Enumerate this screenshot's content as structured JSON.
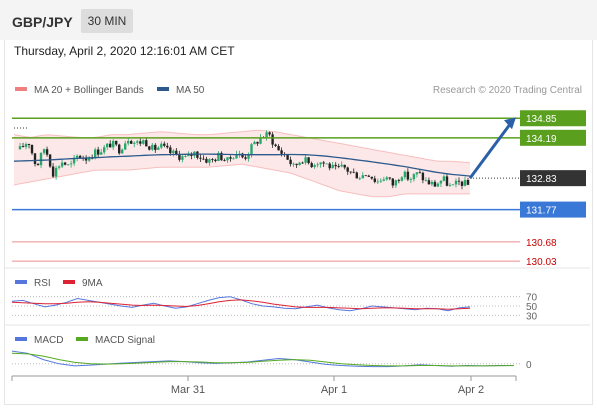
{
  "header": {
    "symbol": "GBP/JPY",
    "timeframe": "30 MIN"
  },
  "timestamp": "Thursday, April 2, 2020 12:16:01 AM CET",
  "legend": {
    "ma20": "MA 20 + Bollinger Bands",
    "ma50": "MA 50",
    "credit": "Research © 2020 Trading Central",
    "rsi": "RSI",
    "ma9": "9MA",
    "macd": "MACD",
    "macd_signal": "MACD Signal"
  },
  "colors": {
    "bollinger": "#f08080",
    "ma50": "#2c5a8c",
    "resistance": "#5aa01e",
    "pivot": "#3a78d8",
    "support": "#e03030",
    "last": "#333333",
    "candle_up": "#27a86b",
    "candle_down": "#222222",
    "rsi": "#5577dd",
    "rsi_ma": "#dd2233",
    "macd": "#5577dd",
    "macd_signal": "#55aa22",
    "arrow": "#2b5fa8"
  },
  "chart_data": [
    {
      "type": "candlestick",
      "title": "",
      "x_ticks": [
        "Mar 31",
        "Apr 1",
        "Apr 2"
      ],
      "ylim": [
        129.8,
        135.6
      ],
      "last_price": 132.83,
      "levels": [
        {
          "value": 134.85,
          "label": "134.85",
          "kind": "resistance"
        },
        {
          "value": 134.19,
          "label": "134.19",
          "kind": "resistance"
        },
        {
          "value": 132.83,
          "label": "132.83",
          "kind": "last"
        },
        {
          "value": 131.77,
          "label": "131.77",
          "kind": "pivot"
        },
        {
          "value": 130.68,
          "label": "130.68",
          "kind": "support"
        },
        {
          "value": 130.03,
          "label": "130.03",
          "kind": "support"
        }
      ],
      "close_path": [
        133.8,
        134.1,
        133.2,
        133.9,
        133.0,
        133.4,
        133.2,
        133.6,
        133.5,
        133.7,
        133.8,
        134.0,
        133.8,
        134.2,
        134.0,
        134.1,
        133.8,
        133.9,
        133.7,
        133.6,
        133.5,
        133.7,
        133.5,
        133.4,
        133.6,
        133.4,
        133.7,
        133.5,
        133.9,
        134.2,
        134.3,
        133.8,
        133.6,
        133.2,
        133.5,
        133.3,
        133.4,
        133.3,
        133.1,
        133.2,
        133.0,
        132.9,
        133.0,
        132.7,
        132.9,
        132.6,
        133.0,
        132.8,
        133.0,
        132.7,
        132.6,
        132.8,
        132.5,
        132.7,
        132.6
      ],
      "ma50": [
        133.4,
        133.42,
        133.44,
        133.47,
        133.5,
        133.52,
        133.55,
        133.57,
        133.6,
        133.62,
        133.63,
        133.64,
        133.64,
        133.63,
        133.62,
        133.62,
        133.62,
        133.63,
        133.62,
        133.58,
        133.52,
        133.45,
        133.38,
        133.3,
        133.22,
        133.12,
        133.02,
        132.95,
        132.9
      ],
      "bb_upper": [
        134.3,
        134.2,
        134.3,
        134.25,
        134.2,
        134.2,
        134.3,
        134.3,
        134.35,
        134.4,
        134.35,
        134.3,
        134.3,
        134.35,
        134.4,
        134.45,
        134.4,
        134.3,
        134.2,
        134.1,
        134.0,
        133.9,
        133.8,
        133.7,
        133.6,
        133.5,
        133.4,
        133.4,
        133.35
      ],
      "bb_lower": [
        132.6,
        132.7,
        132.8,
        132.9,
        133.0,
        133.1,
        133.1,
        133.1,
        133.15,
        133.2,
        133.2,
        133.2,
        133.2,
        133.25,
        133.3,
        133.2,
        133.1,
        133.0,
        132.8,
        132.6,
        132.4,
        132.3,
        132.2,
        132.2,
        132.3,
        132.3,
        132.3,
        132.3,
        132.3
      ],
      "forecast": {
        "from": 132.83,
        "to": 134.85
      }
    },
    {
      "type": "line",
      "title": "RSI",
      "yticks": [
        "70",
        "50",
        "30"
      ],
      "ylim": [
        20,
        80
      ],
      "series": [
        {
          "name": "RSI",
          "values": [
            60,
            62,
            55,
            48,
            52,
            58,
            66,
            62,
            58,
            54,
            50,
            47,
            52,
            56,
            50,
            45,
            48,
            55,
            62,
            68,
            70,
            63,
            55,
            50,
            48,
            45,
            44,
            48,
            52,
            46,
            42,
            40,
            44,
            50,
            48,
            46,
            44,
            42,
            45,
            44,
            40,
            46,
            48
          ]
        },
        {
          "name": "9MA",
          "values": [
            58,
            57,
            56,
            55,
            55,
            56,
            58,
            59,
            58,
            56,
            54,
            52,
            51,
            52,
            51,
            50,
            49,
            51,
            55,
            59,
            62,
            63,
            61,
            58,
            54,
            51,
            48,
            47,
            47,
            47,
            46,
            45,
            44,
            45,
            46,
            46,
            45,
            44,
            44,
            44,
            43,
            44,
            45
          ]
        }
      ]
    },
    {
      "type": "line",
      "title": "MACD",
      "yticks": [
        "0"
      ],
      "ylim": [
        -0.35,
        0.45
      ],
      "series": [
        {
          "name": "MACD",
          "values": [
            0.36,
            0.3,
            0.12,
            0.0,
            -0.06,
            -0.04,
            -0.01,
            0.02,
            0.04,
            0.06,
            0.08,
            0.06,
            0.03,
            0.01,
            0.03,
            0.05,
            0.1,
            0.15,
            0.12,
            0.05,
            -0.02,
            -0.05,
            -0.07,
            -0.08,
            -0.08,
            -0.06,
            -0.03,
            -0.05,
            -0.07,
            -0.05,
            -0.06,
            -0.05,
            -0.05
          ]
        },
        {
          "name": "MACD Signal",
          "values": [
            0.3,
            0.28,
            0.22,
            0.12,
            0.04,
            0.0,
            -0.01,
            0.0,
            0.02,
            0.04,
            0.06,
            0.06,
            0.05,
            0.03,
            0.03,
            0.04,
            0.07,
            0.1,
            0.12,
            0.1,
            0.05,
            0.0,
            -0.03,
            -0.05,
            -0.06,
            -0.06,
            -0.05,
            -0.05,
            -0.06,
            -0.06,
            -0.06,
            -0.055,
            -0.05
          ]
        }
      ]
    }
  ]
}
